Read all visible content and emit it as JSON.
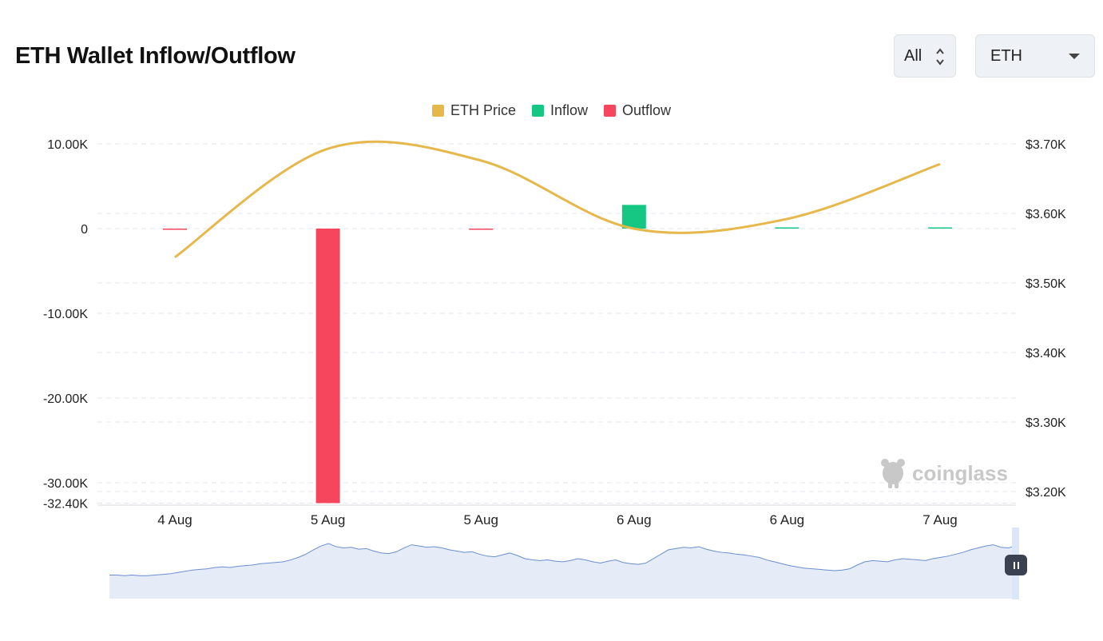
{
  "header": {
    "title": "ETH Wallet Inflow/Outflow",
    "range_select": {
      "value": "All",
      "icon": "up-down-chevron-icon"
    },
    "coin_select": {
      "value": "ETH",
      "icon": "chevron-down-icon"
    }
  },
  "watermark": "coinglass",
  "colors": {
    "price": "#e6b84b",
    "inflow": "#16c784",
    "outflow": "#f6465d",
    "grid": "#e4e7ec",
    "navigator_fill": "#e5ecf8",
    "navigator_line": "#6a8fd0"
  },
  "chart_data": {
    "type": "bar",
    "title": "ETH Wallet Inflow/Outflow",
    "legend": [
      "ETH Price",
      "Inflow",
      "Outflow"
    ],
    "legend_position": "top-center",
    "categories": [
      "4 Aug",
      "5 Aug",
      "5 Aug",
      "6 Aug",
      "6 Aug",
      "7 Aug"
    ],
    "series": [
      {
        "name": "Inflow",
        "axis": "left",
        "values": [
          0,
          0,
          0,
          2800,
          120,
          80
        ]
      },
      {
        "name": "Outflow",
        "axis": "left",
        "values": [
          -120,
          -32400,
          -60,
          0,
          0,
          0
        ]
      },
      {
        "name": "ETH Price",
        "axis": "right",
        "type": "line",
        "values": [
          3537,
          3693,
          3676,
          3578,
          3592,
          3671
        ]
      }
    ],
    "y_left": {
      "ticks": [
        "10.00K",
        "0",
        "-10.00K",
        "-20.00K",
        "-30.00K",
        "-32.40K"
      ],
      "range": [
        -32400,
        10000
      ]
    },
    "y_right": {
      "ticks": [
        "$3.70K",
        "$3.60K",
        "$3.50K",
        "$3.40K",
        "$3.30K",
        "$3.20K"
      ],
      "range": [
        3190,
        3700
      ]
    },
    "grid": true
  },
  "navigator": {
    "values": [
      12,
      12,
      11,
      12,
      11,
      11,
      12,
      13,
      14,
      16,
      18,
      20,
      21,
      22,
      24,
      25,
      24,
      26,
      27,
      28,
      30,
      31,
      32,
      33,
      36,
      40,
      45,
      52,
      58,
      62,
      57,
      55,
      56,
      53,
      54,
      50,
      47,
      46,
      49,
      55,
      60,
      58,
      56,
      57,
      55,
      52,
      50,
      48,
      49,
      45,
      42,
      41,
      44,
      47,
      43,
      38,
      36,
      35,
      36,
      34,
      33,
      35,
      38,
      36,
      33,
      31,
      34,
      36,
      32,
      30,
      29,
      31,
      38,
      45,
      52,
      54,
      56,
      55,
      57,
      53,
      50,
      48,
      47,
      45,
      44,
      42,
      40,
      36,
      33,
      30,
      27,
      25,
      23,
      22,
      21,
      20,
      19,
      20,
      22,
      28,
      33,
      35,
      34,
      33,
      36,
      38,
      37,
      36,
      35,
      38,
      40,
      42,
      45,
      48,
      52,
      55,
      58,
      60,
      56,
      55,
      58
    ]
  }
}
